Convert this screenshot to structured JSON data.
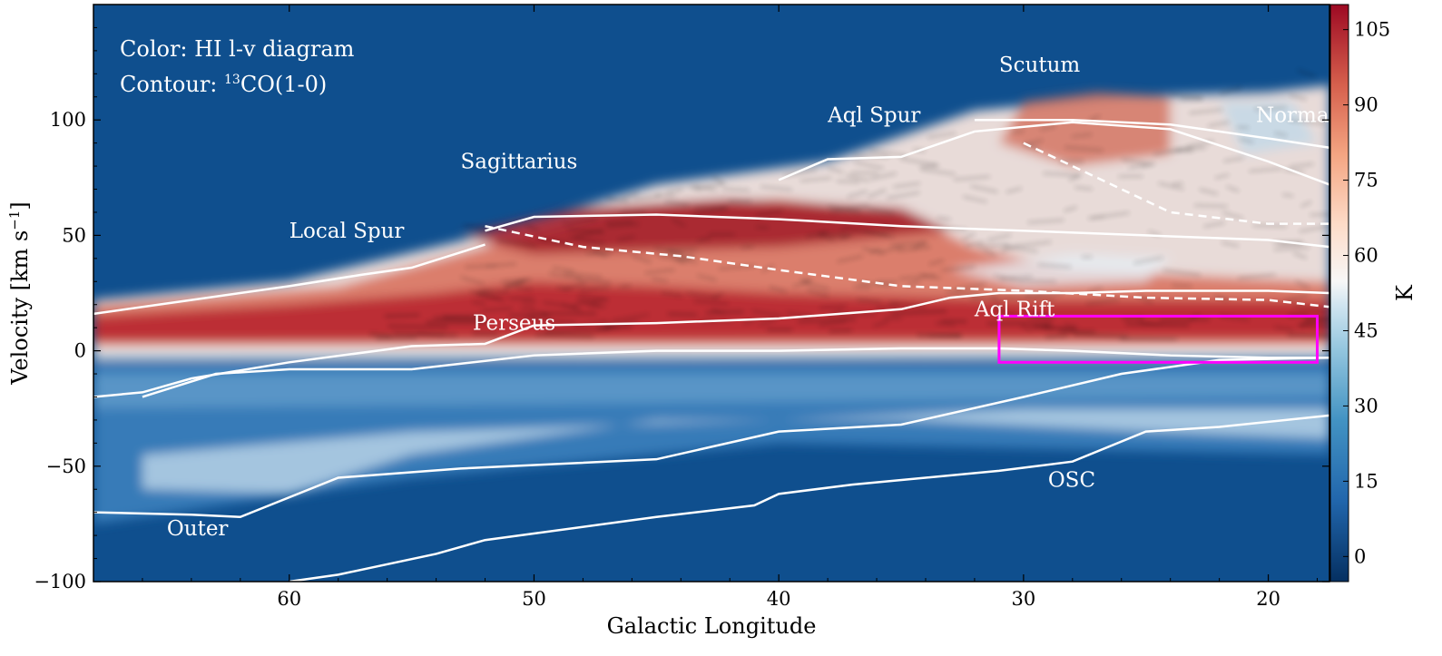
{
  "chart_data": {
    "type": "heatmap",
    "description_labels": {
      "color_line": "Color: HI l-v diagram",
      "contour_prefix": "Contour: ",
      "contour_sup": "13",
      "contour_suffix": "CO(1-0)"
    },
    "xlabel": "Galactic Longitude",
    "ylabel": "Velocity [km s",
    "ylabel_sup": "−1",
    "ylabel_close": "]",
    "xlim": [
      68,
      17.5
    ],
    "ylim": [
      -100,
      150
    ],
    "xticks": [
      60,
      50,
      40,
      30,
      20
    ],
    "yticks": [
      -100,
      -50,
      0,
      50,
      100
    ],
    "colorbar": {
      "label": "K",
      "cmap": "RdBu_r",
      "range": [
        -5,
        110
      ],
      "ticks": [
        0,
        15,
        30,
        45,
        60,
        75,
        90,
        105
      ]
    },
    "arm_labels": [
      {
        "text": "Scutum",
        "l": 31,
        "v": 121
      },
      {
        "text": "Norma",
        "l": 20.5,
        "v": 99
      },
      {
        "text": "Aql Spur",
        "l": 38,
        "v": 99
      },
      {
        "text": "Sagittarius",
        "l": 53,
        "v": 79
      },
      {
        "text": "Local Spur",
        "l": 60,
        "v": 49
      },
      {
        "text": "Perseus",
        "l": 52.5,
        "v": 9
      },
      {
        "text": "Aql Rift",
        "l": 32,
        "v": 15
      },
      {
        "text": "OSC",
        "l": 29,
        "v": -59
      },
      {
        "text": "Outer",
        "l": 65,
        "v": -80
      }
    ],
    "arm_tracks": [
      {
        "name": "Local Spur",
        "points": [
          [
            68,
            16
          ],
          [
            64,
            22
          ],
          [
            60,
            28
          ],
          [
            57,
            33
          ],
          [
            55,
            36
          ],
          [
            52,
            46
          ]
        ],
        "dashed": false
      },
      {
        "name": "Sagittarius",
        "points": [
          [
            52,
            52
          ],
          [
            50,
            58
          ],
          [
            45,
            59
          ],
          [
            40,
            57
          ],
          [
            35,
            54
          ],
          [
            30,
            52
          ],
          [
            25,
            50
          ],
          [
            20,
            48
          ],
          [
            17.5,
            45
          ]
        ],
        "dashed": false
      },
      {
        "name": "Sagittarius far",
        "points": [
          [
            52,
            54
          ],
          [
            48,
            45
          ],
          [
            44,
            41
          ],
          [
            40,
            35
          ],
          [
            35,
            28
          ],
          [
            30,
            26
          ],
          [
            25,
            23
          ],
          [
            20,
            22
          ],
          [
            17.5,
            19
          ]
        ],
        "dashed": true
      },
      {
        "name": "Aql Spur",
        "points": [
          [
            40,
            74
          ],
          [
            38,
            83
          ],
          [
            35,
            84
          ],
          [
            32,
            95
          ],
          [
            28,
            99
          ],
          [
            24,
            96
          ],
          [
            20,
            82
          ],
          [
            17.5,
            72
          ]
        ],
        "dashed": false
      },
      {
        "name": "Scutum",
        "points": [
          [
            32,
            100
          ],
          [
            28,
            100
          ],
          [
            24,
            98
          ],
          [
            20,
            92
          ],
          [
            17.5,
            88
          ]
        ],
        "dashed": false
      },
      {
        "name": "Scutum far",
        "points": [
          [
            30,
            90
          ],
          [
            27,
            75
          ],
          [
            24,
            60
          ],
          [
            20,
            55
          ],
          [
            17.5,
            55
          ]
        ],
        "dashed": true
      },
      {
        "name": "Perseus",
        "points": [
          [
            68,
            -20
          ],
          [
            66,
            -18
          ],
          [
            64,
            -12
          ],
          [
            60,
            -5
          ],
          [
            55,
            2
          ],
          [
            52,
            3
          ],
          [
            50,
            11
          ],
          [
            45,
            12
          ],
          [
            40,
            14
          ],
          [
            35,
            18
          ],
          [
            33,
            23
          ],
          [
            31,
            25
          ],
          [
            28,
            25
          ],
          [
            25,
            26
          ],
          [
            20,
            26
          ],
          [
            17.5,
            25
          ]
        ],
        "dashed": false
      },
      {
        "name": "Outer inner",
        "points": [
          [
            66,
            -20
          ],
          [
            63,
            -10
          ],
          [
            60,
            -8
          ],
          [
            55,
            -8
          ],
          [
            50,
            -2
          ],
          [
            45,
            0
          ],
          [
            40,
            0
          ],
          [
            35,
            1
          ],
          [
            31,
            1
          ],
          [
            28,
            0
          ],
          [
            24,
            -2
          ],
          [
            20,
            -3
          ],
          [
            17.5,
            -3
          ]
        ],
        "dashed": false
      },
      {
        "name": "OSC",
        "points": [
          [
            68,
            -70
          ],
          [
            64,
            -71
          ],
          [
            62,
            -72
          ],
          [
            58,
            -55
          ],
          [
            53,
            -51
          ],
          [
            45,
            -47
          ],
          [
            40,
            -35
          ],
          [
            35,
            -32
          ],
          [
            30,
            -20
          ],
          [
            26,
            -10
          ],
          [
            22,
            -4
          ],
          [
            17.5,
            -3
          ]
        ],
        "dashed": false
      },
      {
        "name": "Outer",
        "points": [
          [
            60,
            -100
          ],
          [
            58,
            -97
          ],
          [
            54,
            -88
          ],
          [
            52,
            -82
          ],
          [
            45,
            -72
          ],
          [
            41,
            -67
          ],
          [
            40,
            -62
          ],
          [
            37,
            -58
          ],
          [
            31,
            -52
          ],
          [
            28,
            -48
          ],
          [
            25,
            -35
          ],
          [
            22,
            -33
          ],
          [
            17.5,
            -28
          ]
        ],
        "dashed": false
      }
    ],
    "highlight_box": {
      "l_range": [
        31,
        18
      ],
      "v_range": [
        -5,
        15
      ],
      "color": "#ff00ff"
    }
  }
}
